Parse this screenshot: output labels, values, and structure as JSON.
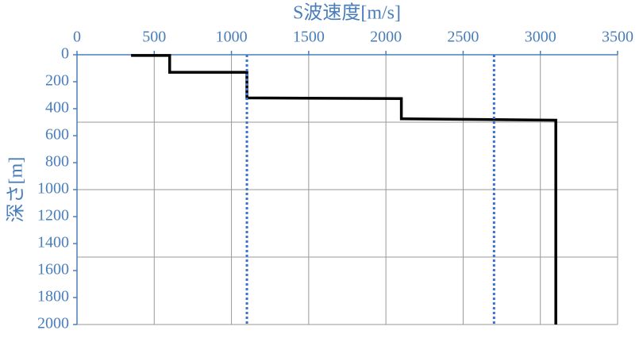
{
  "chart_data": {
    "type": "line",
    "title": "S波速度[m/s]",
    "y_label": "深さ[m]",
    "xlim": [
      0,
      3500
    ],
    "xticks": [
      0,
      500,
      1000,
      1500,
      2000,
      2500,
      3000,
      3500
    ],
    "ylim": [
      0,
      2000
    ],
    "yticks": [
      0,
      200,
      400,
      600,
      800,
      1000,
      1200,
      1400,
      1600,
      1800,
      2000
    ],
    "y_inverted": true,
    "x_axis_position": "top",
    "grid": true,
    "y_grid_lines": [
      500,
      1000,
      1500,
      2000
    ],
    "axis_color": "#4a7ebb",
    "series": [
      {
        "color": "#000000",
        "dash": false,
        "x": [
          350,
          600,
          600,
          1100,
          1100,
          2100,
          2100,
          3100,
          3100
        ],
        "values": [
          5,
          5,
          130,
          130,
          320,
          325,
          475,
          485,
          2000
        ]
      },
      {
        "color": "#3a72d0",
        "dash": true,
        "x": [
          1100,
          1100
        ],
        "values": [
          0,
          2000
        ]
      },
      {
        "color": "#3a72d0",
        "dash": true,
        "x": [
          2700,
          2700
        ],
        "values": [
          0,
          2000
        ]
      }
    ]
  }
}
